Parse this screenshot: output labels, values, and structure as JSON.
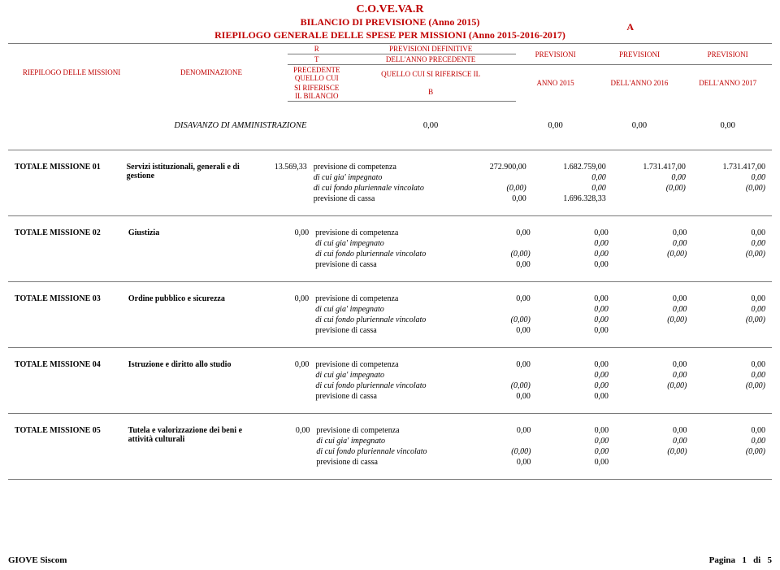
{
  "header": {
    "org": "C.O.VE.VA.R",
    "line1": "BILANCIO DI PREVISIONE (Anno 2015)",
    "line2": "RIEPILOGO GENERALE DELLE SPESE PER MISSIONI (Anno 2015-2016-2017)",
    "letter": "A",
    "col_missioni": "RIEPILOGO DELLE MISSIONI",
    "col_denom": "DENOMINAZIONE",
    "col_r": "R",
    "col_t": "T",
    "col_prec1": "PRECEDENTE QUELLO CUI",
    "col_prec2": "SI RIFERISCE IL BILANCIO",
    "col_def": "PREVISIONI DEFINITIVE",
    "col_anno_prec": "DELL'ANNO PRECEDENTE",
    "col_quello": "QUELLO CUI SI RIFERISCE IL",
    "col_b": "B",
    "col_previsioni": "PREVISIONI",
    "col_anno2015": "ANNO 2015",
    "col_anno2016": "DELL'ANNO 2016",
    "col_anno2017": "DELL'ANNO 2017"
  },
  "disavanzo": {
    "label": "DISAVANZO DI AMMINISTRAZIONE",
    "v1": "0,00",
    "v2": "0,00",
    "v3": "0,00",
    "v4": "0,00"
  },
  "line_labels": {
    "competenza": "previsione di competenza",
    "impegnato": "di cui gia' impegnato",
    "fondo": "di cui fondo pluriennale vincolato",
    "cassa": "previsione di cassa"
  },
  "blocks": [
    {
      "code": "TOTALE MISSIONE 01",
      "desc": "Servizi istituzionali, generali e di gestione",
      "prev": "13.569,33",
      "rows": [
        [
          "competenza",
          "272.900,00",
          "1.682.759,00",
          "1.731.417,00",
          "1.731.417,00",
          false
        ],
        [
          "impegnato",
          "",
          "0,00",
          "0,00",
          "0,00",
          true
        ],
        [
          "fondo",
          "(0,00)",
          "0,00",
          "(0,00)",
          "(0,00)",
          true
        ],
        [
          "cassa",
          "0,00",
          "1.696.328,33",
          "",
          "",
          false
        ]
      ]
    },
    {
      "code": "TOTALE MISSIONE 02",
      "desc": "Giustizia",
      "prev": "0,00",
      "rows": [
        [
          "competenza",
          "0,00",
          "0,00",
          "0,00",
          "0,00",
          false
        ],
        [
          "impegnato",
          "",
          "0,00",
          "0,00",
          "0,00",
          true
        ],
        [
          "fondo",
          "(0,00)",
          "0,00",
          "(0,00)",
          "(0,00)",
          true
        ],
        [
          "cassa",
          "0,00",
          "0,00",
          "",
          "",
          false
        ]
      ]
    },
    {
      "code": "TOTALE MISSIONE 03",
      "desc": "Ordine pubblico e sicurezza",
      "prev": "0,00",
      "rows": [
        [
          "competenza",
          "0,00",
          "0,00",
          "0,00",
          "0,00",
          false
        ],
        [
          "impegnato",
          "",
          "0,00",
          "0,00",
          "0,00",
          true
        ],
        [
          "fondo",
          "(0,00)",
          "0,00",
          "(0,00)",
          "(0,00)",
          true
        ],
        [
          "cassa",
          "0,00",
          "0,00",
          "",
          "",
          false
        ]
      ]
    },
    {
      "code": "TOTALE MISSIONE 04",
      "desc": "Istruzione e diritto allo studio",
      "prev": "0,00",
      "rows": [
        [
          "competenza",
          "0,00",
          "0,00",
          "0,00",
          "0,00",
          false
        ],
        [
          "impegnato",
          "",
          "0,00",
          "0,00",
          "0,00",
          true
        ],
        [
          "fondo",
          "(0,00)",
          "0,00",
          "(0,00)",
          "(0,00)",
          true
        ],
        [
          "cassa",
          "0,00",
          "0,00",
          "",
          "",
          false
        ]
      ]
    },
    {
      "code": "TOTALE MISSIONE 05",
      "desc": "Tutela e valorizzazione dei beni e attività culturali",
      "prev": "0,00",
      "rows": [
        [
          "competenza",
          "0,00",
          "0,00",
          "0,00",
          "0,00",
          false
        ],
        [
          "impegnato",
          "",
          "0,00",
          "0,00",
          "0,00",
          true
        ],
        [
          "fondo",
          "(0,00)",
          "0,00",
          "(0,00)",
          "(0,00)",
          true
        ],
        [
          "cassa",
          "0,00",
          "0,00",
          "",
          "",
          false
        ]
      ]
    }
  ],
  "footer": {
    "left": "GIOVE Siscom",
    "right_prefix": "Pagina",
    "page": "1",
    "sep": "di",
    "total": "5"
  }
}
